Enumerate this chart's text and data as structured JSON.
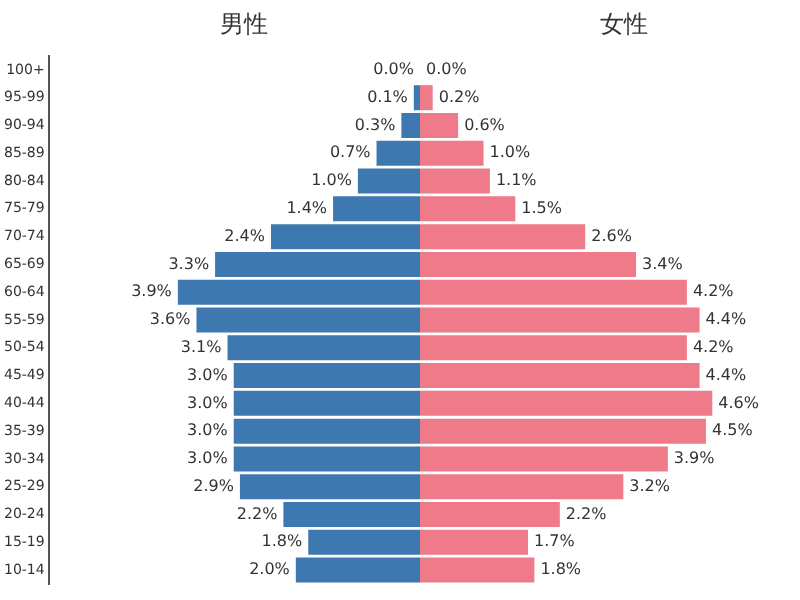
{
  "chart_data": [
    {
      "type": "bar",
      "orientation": "horizontal",
      "title": "男性",
      "categories": [
        "100+",
        "95-99",
        "90-94",
        "85-89",
        "80-84",
        "75-79",
        "70-74",
        "65-69",
        "60-64",
        "55-59",
        "50-54",
        "45-49",
        "40-44",
        "35-39",
        "30-34",
        "25-29",
        "20-24",
        "15-19",
        "10-14"
      ],
      "series": [
        {
          "color": "#3d78b0",
          "values": [
            0.0,
            0.1,
            0.3,
            0.7,
            1.0,
            1.4,
            2.4,
            3.3,
            3.9,
            3.6,
            3.1,
            3.0,
            3.0,
            3.0,
            3.0,
            2.9,
            2.2,
            1.8,
            2.0
          ],
          "value_labels": [
            "0.0%",
            "0.1%",
            "0.3%",
            "0.7%",
            "1.0%",
            "1.4%",
            "2.4%",
            "3.3%",
            "3.9%",
            "3.6%",
            "3.1%",
            "3.0%",
            "3.0%",
            "3.0%",
            "3.0%",
            "2.9%",
            "2.2%",
            "1.8%",
            "2.0%"
          ]
        }
      ]
    },
    {
      "type": "bar",
      "orientation": "horizontal",
      "title": "女性",
      "tick_labels": false,
      "categories": [
        null,
        null,
        null,
        null,
        null,
        null,
        null,
        null,
        null,
        null,
        null,
        null,
        null,
        null,
        null,
        null,
        null,
        null,
        null
      ],
      "series": [
        {
          "color": "#ee7a8a",
          "values": [
            0.0,
            0.2,
            0.6,
            1.0,
            1.1,
            1.5,
            2.6,
            3.4,
            4.2,
            4.4,
            4.2,
            4.4,
            4.6,
            4.5,
            3.9,
            3.2,
            2.2,
            1.7,
            1.8
          ],
          "value_labels": [
            "0.0%",
            "0.2%",
            "0.6%",
            "1.0%",
            "1.1%",
            "1.5%",
            "2.6%",
            "3.4%",
            "4.2%",
            "4.4%",
            "4.2%",
            "4.4%",
            "4.6%",
            "4.5%",
            "3.9%",
            "3.2%",
            "2.2%",
            "1.7%",
            "1.8%"
          ]
        }
      ]
    }
  ]
}
